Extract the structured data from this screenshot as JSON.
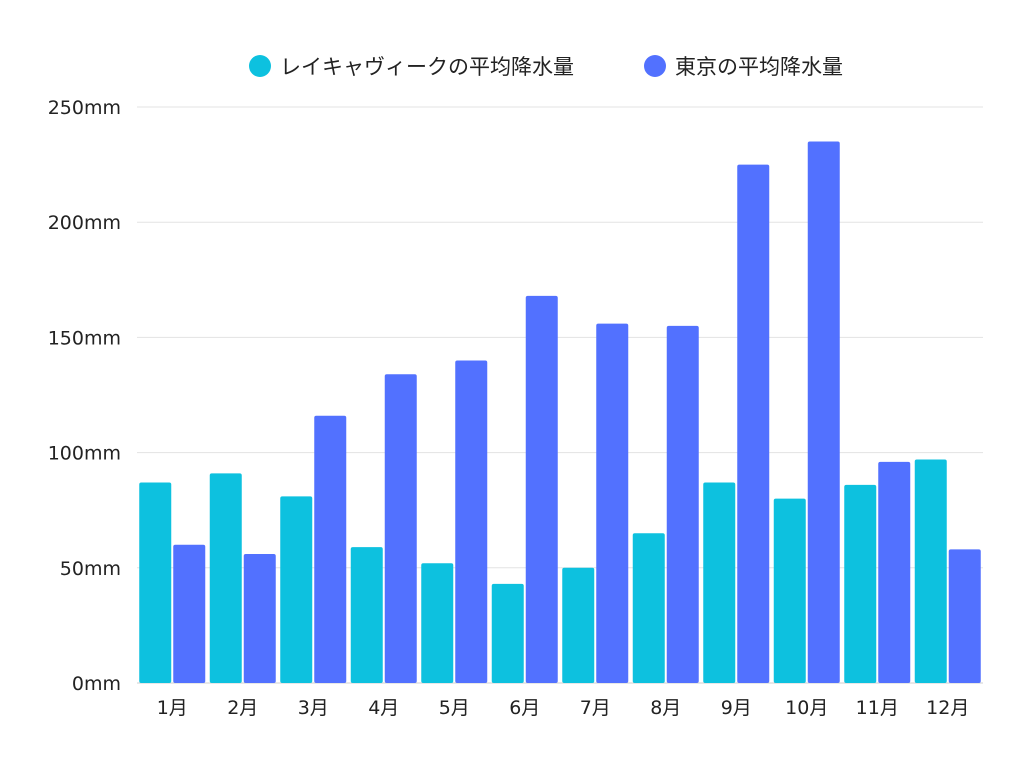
{
  "chart_data": {
    "type": "bar",
    "title": "",
    "xlabel": "",
    "ylabel": "",
    "categories": [
      "1月",
      "2月",
      "3月",
      "4月",
      "5月",
      "6月",
      "7月",
      "8月",
      "9月",
      "10月",
      "11月",
      "12月"
    ],
    "series": [
      {
        "name": "レイキャヴィークの平均降水量",
        "color": "#0dc1df",
        "values": [
          87,
          91,
          81,
          59,
          52,
          43,
          50,
          65,
          87,
          80,
          86,
          97
        ]
      },
      {
        "name": "東京の平均降水量",
        "color": "#5271ff",
        "values": [
          60,
          56,
          116,
          134,
          140,
          168,
          156,
          155,
          225,
          235,
          96,
          58
        ]
      }
    ],
    "ylim": [
      0,
      250
    ],
    "yticks": [
      0,
      50,
      100,
      150,
      200,
      250
    ],
    "ytick_labels": [
      "0mm",
      "50mm",
      "100mm",
      "150mm",
      "200mm",
      "250mm"
    ],
    "grid": true,
    "legend": "top-center"
  }
}
